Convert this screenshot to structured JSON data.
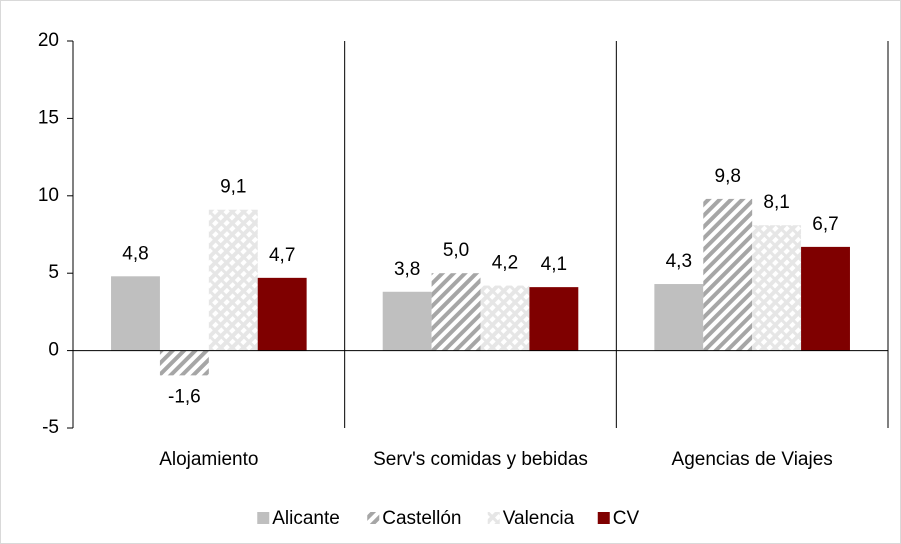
{
  "chart_data": {
    "type": "bar",
    "categories": [
      "Alojamiento",
      "Serv's comidas y bebidas",
      "Agencias de Viajes"
    ],
    "series": [
      {
        "name": "Alicante",
        "color": "#bfbfbf",
        "pattern": "solid",
        "values": [
          4.8,
          3.8,
          4.3
        ],
        "value_labels": [
          "4,8",
          "3,8",
          "4,3"
        ]
      },
      {
        "name": "Castellón",
        "color": "#a6a6a6",
        "pattern": "diagonal",
        "values": [
          -1.6,
          5.0,
          9.8
        ],
        "value_labels": [
          "-1,6",
          "5,0",
          "9,8"
        ]
      },
      {
        "name": "Valencia",
        "color": "#e6e6e6",
        "pattern": "crosshatch",
        "values": [
          9.1,
          4.2,
          8.1
        ],
        "value_labels": [
          "9,1",
          "4,2",
          "8,1"
        ]
      },
      {
        "name": "CV",
        "color": "#7f0000",
        "pattern": "solid",
        "values": [
          4.7,
          4.1,
          6.7
        ],
        "value_labels": [
          "4,7",
          "4,1",
          "6,7"
        ]
      }
    ],
    "ylim": [
      -5,
      20
    ],
    "yticks": [
      -5,
      0,
      5,
      10,
      15,
      20
    ],
    "legend": "bottom"
  }
}
